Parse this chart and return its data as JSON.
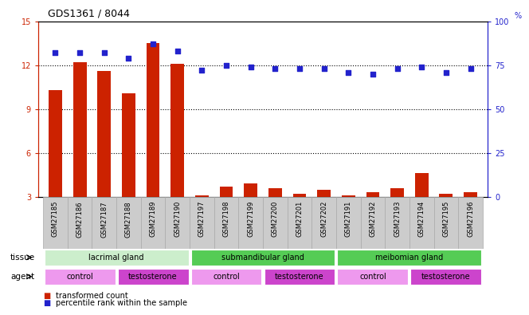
{
  "title": "GDS1361 / 8044",
  "samples": [
    "GSM27185",
    "GSM27186",
    "GSM27187",
    "GSM27188",
    "GSM27189",
    "GSM27190",
    "GSM27197",
    "GSM27198",
    "GSM27199",
    "GSM27200",
    "GSM27201",
    "GSM27202",
    "GSM27191",
    "GSM27192",
    "GSM27193",
    "GSM27194",
    "GSM27195",
    "GSM27196"
  ],
  "transformed_count": [
    10.3,
    12.2,
    11.6,
    10.1,
    13.5,
    12.1,
    3.1,
    3.7,
    3.9,
    3.6,
    3.2,
    3.5,
    3.1,
    3.3,
    3.6,
    4.6,
    3.2,
    3.3
  ],
  "percentile_rank": [
    82,
    82,
    82,
    79,
    87,
    83,
    72,
    75,
    74,
    73,
    73,
    73,
    71,
    70,
    73,
    74,
    71,
    73
  ],
  "ylim_left": [
    3,
    15
  ],
  "ylim_right": [
    0,
    100
  ],
  "yticks_left": [
    3,
    6,
    9,
    12,
    15
  ],
  "yticks_right": [
    0,
    25,
    50,
    75,
    100
  ],
  "bar_color": "#cc2200",
  "dot_color": "#2222cc",
  "bar_width": 0.55,
  "tick_color_left": "#cc2200",
  "tick_color_right": "#2222cc",
  "grid_lines": [
    6,
    9,
    12
  ],
  "tissue_defs": [
    [
      0,
      5,
      "lacrimal gland",
      "#cceecc"
    ],
    [
      6,
      11,
      "submandibular gland",
      "#55cc55"
    ],
    [
      12,
      17,
      "meibomian gland",
      "#55cc55"
    ]
  ],
  "agent_defs": [
    [
      0,
      2,
      "control",
      "#ee99ee"
    ],
    [
      3,
      5,
      "testosterone",
      "#cc44cc"
    ],
    [
      6,
      8,
      "control",
      "#ee99ee"
    ],
    [
      9,
      11,
      "testosterone",
      "#cc44cc"
    ],
    [
      12,
      14,
      "control",
      "#ee99ee"
    ],
    [
      15,
      17,
      "testosterone",
      "#cc44cc"
    ]
  ],
  "legend_bar_color": "#cc2200",
  "legend_dot_color": "#2222cc",
  "legend_bar_label": "transformed count",
  "legend_dot_label": "percentile rank within the sample",
  "xtick_bg": "#cccccc",
  "xtick_edge": "#aaaaaa"
}
